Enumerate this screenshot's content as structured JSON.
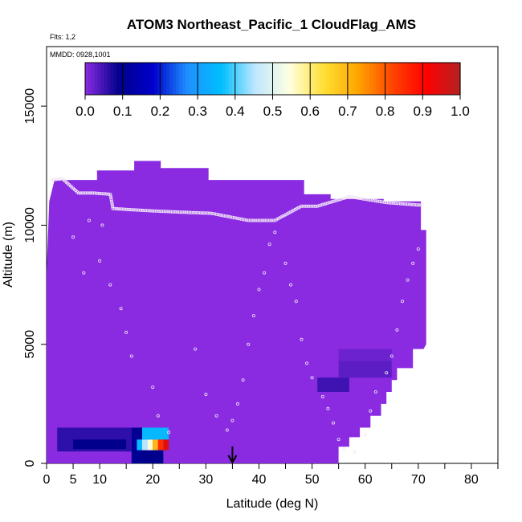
{
  "chart_data": {
    "type": "heatmap",
    "title": "ATOM3 Northeast_Pacific_1 CloudFlag_AMS",
    "xlabel": "Latitude (deg N)",
    "ylabel": "Altitude (m)",
    "flights_note": "Flts: 1,2",
    "date_note": "MMDD: 0928,1001",
    "xlim": [
      0,
      85
    ],
    "ylim": [
      0,
      17500
    ],
    "x_ticks": [
      0,
      5,
      10,
      20,
      30,
      40,
      50,
      60,
      70,
      80
    ],
    "x_minor_ticks": [
      15,
      25,
      35,
      45,
      55,
      65,
      75,
      85
    ],
    "y_ticks": [
      0,
      5000,
      10000,
      15000
    ],
    "colorbar": {
      "min": 0.0,
      "max": 1.0,
      "ticks": [
        "0.0",
        "0.1",
        "0.2",
        "0.3",
        "0.4",
        "0.5",
        "0.6",
        "0.7",
        "0.8",
        "0.9",
        "1.0"
      ],
      "stops": [
        "#8a2be2",
        "#00008b",
        "#0000cd",
        "#1e90ff",
        "#00bfff",
        "#bfe8ff",
        "#ffffe0",
        "#ffe033",
        "#ffa500",
        "#ff4500",
        "#ff0000",
        "#b22222"
      ]
    },
    "background_value": 0.0,
    "coverage_envelope": [
      [
        0,
        0
      ],
      [
        0,
        8000
      ],
      [
        0.5,
        11000
      ],
      [
        1.5,
        11900
      ],
      [
        9.5,
        11900
      ],
      [
        9.5,
        12300
      ],
      [
        16.5,
        12300
      ],
      [
        16.5,
        12700
      ],
      [
        21.5,
        12700
      ],
      [
        21.5,
        12400
      ],
      [
        30.5,
        12400
      ],
      [
        30.5,
        11900
      ],
      [
        38.5,
        11900
      ],
      [
        38.5,
        11900
      ],
      [
        48.5,
        11900
      ],
      [
        48.5,
        11300
      ],
      [
        53.5,
        11300
      ],
      [
        53.5,
        11100
      ],
      [
        63.5,
        11100
      ],
      [
        63.5,
        11000
      ],
      [
        70.5,
        11000
      ],
      [
        70.5,
        9800
      ],
      [
        71.5,
        9800
      ],
      [
        71.5,
        5000
      ],
      [
        71,
        4800
      ],
      [
        69,
        4800
      ],
      [
        69,
        4000
      ],
      [
        66,
        4000
      ],
      [
        66,
        3500
      ],
      [
        65,
        3500
      ],
      [
        65,
        3000
      ],
      [
        64,
        3000
      ],
      [
        64,
        2500
      ],
      [
        63,
        2500
      ],
      [
        63,
        2000
      ],
      [
        61,
        2000
      ],
      [
        61,
        1500
      ],
      [
        59,
        1500
      ],
      [
        59,
        1100
      ],
      [
        57,
        1100
      ],
      [
        57,
        700
      ],
      [
        55,
        700
      ],
      [
        55,
        0
      ]
    ],
    "cells": [
      {
        "x0": 2,
        "x1": 16,
        "y0": 500,
        "y1": 1500,
        "value": 0.06
      },
      {
        "x0": 5,
        "x1": 15,
        "y0": 600,
        "y1": 1000,
        "value": 0.09
      },
      {
        "x0": 16,
        "x1": 18,
        "y0": 0,
        "y1": 1500,
        "value": 0.1
      },
      {
        "x0": 16.5,
        "x1": 17,
        "y0": 550,
        "y1": 1000,
        "value": 0.12
      },
      {
        "x0": 17,
        "x1": 18,
        "y0": 550,
        "y1": 1000,
        "value": 0.35
      },
      {
        "x0": 18,
        "x1": 19,
        "y0": 550,
        "y1": 1000,
        "value": 0.45
      },
      {
        "x0": 19,
        "x1": 20,
        "y0": 550,
        "y1": 1000,
        "value": 0.55
      },
      {
        "x0": 20,
        "x1": 21,
        "y0": 550,
        "y1": 1000,
        "value": 0.7
      },
      {
        "x0": 21,
        "x1": 22,
        "y0": 550,
        "y1": 1000,
        "value": 0.85
      },
      {
        "x0": 22,
        "x1": 23,
        "y0": 550,
        "y1": 1000,
        "value": 0.95
      },
      {
        "x0": 18,
        "x1": 23,
        "y0": 1000,
        "y1": 1500,
        "value": 0.35
      },
      {
        "x0": 18,
        "x1": 22,
        "y0": 0,
        "y1": 550,
        "value": 0.09
      },
      {
        "x0": 51,
        "x1": 57,
        "y0": 3000,
        "y1": 3600,
        "value": 0.05
      },
      {
        "x0": 55,
        "x1": 65,
        "y0": 3600,
        "y1": 4300,
        "value": 0.03
      },
      {
        "x0": 55,
        "x1": 65,
        "y0": 4300,
        "y1": 4800,
        "value": 0.02
      }
    ],
    "flight_track_alt_profile": [
      [
        1,
        11900
      ],
      [
        3,
        11950
      ],
      [
        6,
        11350
      ],
      [
        9,
        11350
      ],
      [
        12,
        11300
      ],
      [
        12.5,
        10700
      ],
      [
        16,
        10650
      ],
      [
        20,
        10600
      ],
      [
        25,
        10550
      ],
      [
        31,
        10500
      ],
      [
        38,
        10200
      ],
      [
        43,
        10200
      ],
      [
        48,
        10800
      ],
      [
        51,
        10800
      ],
      [
        57,
        11200
      ],
      [
        64,
        10950
      ],
      [
        70,
        10850
      ],
      [
        71,
        10850
      ]
    ],
    "sample_points": [
      [
        5,
        9500
      ],
      [
        7,
        8000
      ],
      [
        8,
        10200
      ],
      [
        10,
        8500
      ],
      [
        10.5,
        10000
      ],
      [
        12,
        7500
      ],
      [
        14,
        6500
      ],
      [
        15,
        5500
      ],
      [
        16,
        4500
      ],
      [
        20,
        3200
      ],
      [
        21,
        2000
      ],
      [
        23,
        1300
      ],
      [
        28,
        4800
      ],
      [
        30,
        2900
      ],
      [
        32,
        2000
      ],
      [
        34,
        1400
      ],
      [
        35,
        1800
      ],
      [
        36,
        2500
      ],
      [
        37,
        3500
      ],
      [
        38,
        5000
      ],
      [
        39,
        6200
      ],
      [
        40,
        7300
      ],
      [
        41,
        8000
      ],
      [
        42,
        9200
      ],
      [
        43,
        9700
      ],
      [
        45,
        8400
      ],
      [
        46,
        7500
      ],
      [
        47,
        6800
      ],
      [
        48,
        5200
      ],
      [
        49,
        4200
      ],
      [
        50,
        3600
      ],
      [
        52,
        2800
      ],
      [
        53,
        2300
      ],
      [
        54,
        1700
      ],
      [
        55,
        1000
      ],
      [
        56,
        600
      ],
      [
        58,
        500
      ],
      [
        60,
        1200
      ],
      [
        61,
        2200
      ],
      [
        62,
        3000
      ],
      [
        64,
        3800
      ],
      [
        65,
        4500
      ],
      [
        66,
        5600
      ],
      [
        67,
        6800
      ],
      [
        68,
        7700
      ],
      [
        69,
        8400
      ],
      [
        70,
        9000
      ]
    ],
    "arrow_marker_x": 35
  }
}
